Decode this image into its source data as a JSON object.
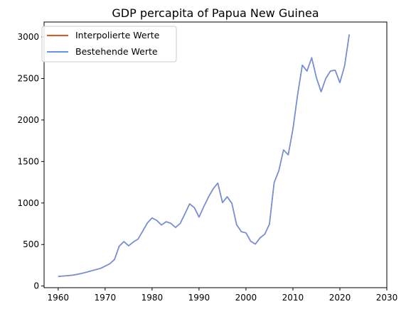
{
  "chart_data": {
    "type": "line",
    "title": "GDP percapita of Papua New Guinea",
    "xlabel": "",
    "ylabel": "",
    "xlim": [
      1957,
      2030
    ],
    "ylim": [
      -20,
      3180
    ],
    "xticks": [
      1960,
      1970,
      1980,
      1990,
      2000,
      2010,
      2020,
      2030
    ],
    "yticks": [
      0,
      500,
      1000,
      1500,
      2000,
      2500,
      3000
    ],
    "grid": false,
    "legend_position": "top-left",
    "colors": {
      "interpolated": "#e8541f",
      "existing": "#6495ed",
      "axis": "#000000"
    },
    "series": [
      {
        "name": "Interpolierte Werte",
        "color": "#e8541f",
        "x": [
          1960,
          1961,
          1962,
          1963,
          1964,
          1965,
          1966,
          1967,
          1968,
          1969,
          1970,
          1971,
          1972,
          1973,
          1974,
          1975,
          1976,
          1977,
          1978,
          1979,
          1980,
          1981,
          1982,
          1983,
          1984,
          1985,
          1986,
          1987,
          1988,
          1989,
          1990,
          1991,
          1992,
          1993,
          1994,
          1995,
          1996,
          1997,
          1998,
          1999,
          2000,
          2001,
          2002,
          2003,
          2004,
          2005,
          2006,
          2007,
          2008,
          2009,
          2010,
          2011,
          2012,
          2013,
          2014,
          2015,
          2016,
          2017,
          2018,
          2019,
          2020,
          2021,
          2022
        ],
        "y": [
          115,
          120,
          125,
          130,
          140,
          152,
          166,
          182,
          197,
          212,
          240,
          268,
          320,
          480,
          535,
          485,
          530,
          565,
          660,
          760,
          820,
          790,
          735,
          775,
          755,
          705,
          755,
          870,
          990,
          945,
          830,
          955,
          1070,
          1170,
          1240,
          1005,
          1075,
          995,
          740,
          655,
          640,
          540,
          505,
          580,
          625,
          745,
          1245,
          1390,
          1640,
          1580,
          1890,
          2305,
          2660,
          2590,
          2750,
          2510,
          2340,
          2500,
          2590,
          2600,
          2450,
          2650,
          3030
        ]
      },
      {
        "name": "Bestehende Werte",
        "color": "#6495ed",
        "x": [
          1960,
          1961,
          1962,
          1963,
          1964,
          1965,
          1966,
          1967,
          1968,
          1969,
          1970,
          1971,
          1972,
          1973,
          1974,
          1975,
          1976,
          1977,
          1978,
          1979,
          1980,
          1981,
          1982,
          1983,
          1984,
          1985,
          1986,
          1987,
          1988,
          1989,
          1990,
          1991,
          1992,
          1993,
          1994,
          1995,
          1996,
          1997,
          1998,
          1999,
          2000,
          2001,
          2002,
          2003,
          2004,
          2005,
          2006,
          2007,
          2008,
          2009,
          2010,
          2011,
          2012,
          2013,
          2014,
          2015,
          2016,
          2017,
          2018,
          2019,
          2020,
          2021,
          2022
        ],
        "y": [
          115,
          120,
          125,
          130,
          140,
          152,
          166,
          182,
          197,
          212,
          240,
          268,
          320,
          480,
          535,
          485,
          530,
          565,
          660,
          760,
          820,
          790,
          735,
          775,
          755,
          705,
          755,
          870,
          990,
          945,
          830,
          955,
          1070,
          1170,
          1240,
          1005,
          1075,
          995,
          740,
          655,
          640,
          540,
          505,
          580,
          625,
          745,
          1245,
          1390,
          1640,
          1580,
          1890,
          2305,
          2660,
          2590,
          2750,
          2510,
          2340,
          2500,
          2590,
          2600,
          2450,
          2650,
          3030
        ]
      }
    ]
  }
}
